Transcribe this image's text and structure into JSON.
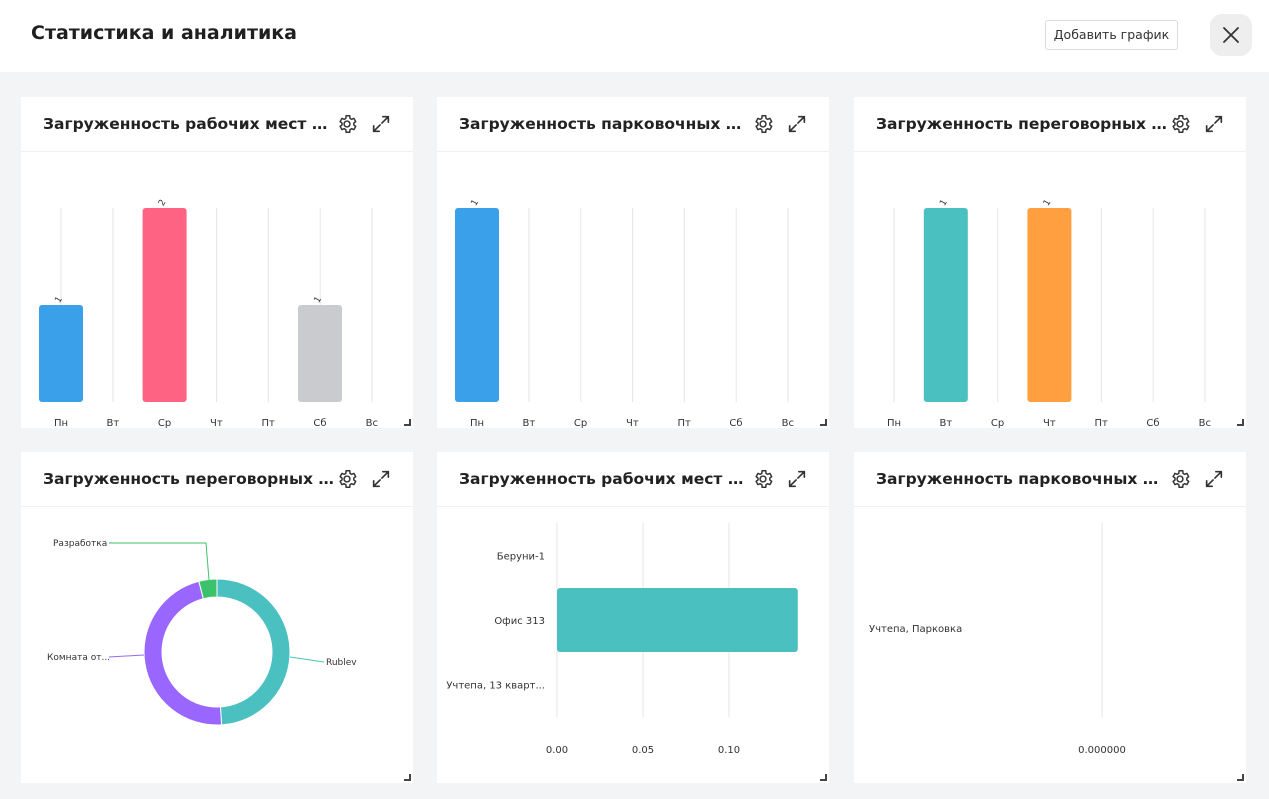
{
  "header": {
    "title": "Статистика и аналитика",
    "add_button": "Добавить график"
  },
  "colors": {
    "blue": "#3ba0ea",
    "pink": "#ff6384",
    "gray": "#c9cbcf",
    "teal": "#4bc0c0",
    "orange": "#ff9f40",
    "purple": "#9966ff",
    "green": "#3cc26a"
  },
  "cards": [
    {
      "title": "Загруженность рабочих мест за неделю"
    },
    {
      "title": "Загруженность парковочных мест за неделю"
    },
    {
      "title": "Загруженность переговорных комнат за неделю"
    },
    {
      "title": "Загруженность переговорных комнат"
    },
    {
      "title": "Загруженность рабочих мест по этажам"
    },
    {
      "title": "Загруженность парковочных мест"
    }
  ],
  "chart_data": [
    {
      "type": "bar",
      "categories": [
        "Пн",
        "Вт",
        "Ср",
        "Чт",
        "Пт",
        "Сб",
        "Вс"
      ],
      "values": [
        1,
        0,
        2,
        0,
        0,
        1,
        0
      ],
      "colors": [
        "#3ba0ea",
        "#3ba0ea",
        "#ff6384",
        "#ff6384",
        "#ff6384",
        "#c9cbcf",
        "#c9cbcf"
      ],
      "ylim": [
        0,
        2
      ]
    },
    {
      "type": "bar",
      "categories": [
        "Пн",
        "Вт",
        "Ср",
        "Чт",
        "Пт",
        "Сб",
        "Вс"
      ],
      "values": [
        1,
        0,
        0,
        0,
        0,
        0,
        0
      ],
      "colors": [
        "#3ba0ea",
        "#3ba0ea",
        "#3ba0ea",
        "#3ba0ea",
        "#3ba0ea",
        "#3ba0ea",
        "#3ba0ea"
      ],
      "ylim": [
        0,
        1
      ]
    },
    {
      "type": "bar",
      "categories": [
        "Пн",
        "Вт",
        "Ср",
        "Чт",
        "Пт",
        "Сб",
        "Вс"
      ],
      "values": [
        0,
        1,
        0,
        1,
        0,
        0,
        0
      ],
      "colors": [
        "#4bc0c0",
        "#4bc0c0",
        "#4bc0c0",
        "#ff9f40",
        "#ff9f40",
        "#ff9f40",
        "#ff9f40"
      ],
      "ylim": [
        0,
        1
      ]
    },
    {
      "type": "pie",
      "labels": [
        "Rublev",
        "Комната от...",
        "Разработка"
      ],
      "values": [
        49,
        47,
        4
      ],
      "colors": [
        "#4bc0c0",
        "#9966ff",
        "#3cc26a"
      ]
    },
    {
      "type": "bar",
      "orientation": "horizontal",
      "categories": [
        "Беруни-1",
        "Офис 313",
        "Учтепа, 13 кварт..."
      ],
      "values": [
        0,
        0.14,
        0
      ],
      "color": "#4bc0c0",
      "xticks": [
        "0.00",
        "0.05",
        "0.10"
      ],
      "xlim": [
        0,
        0.15
      ]
    },
    {
      "type": "bar",
      "orientation": "horizontal",
      "categories": [
        "Учтепа, Парковка"
      ],
      "values": [
        0
      ],
      "color": "#3ba0ea",
      "xticks": [
        "0.000000"
      ]
    }
  ]
}
